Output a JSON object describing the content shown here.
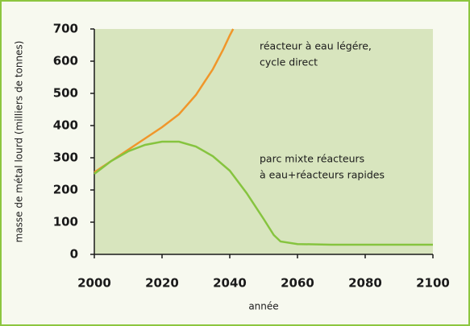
{
  "chart_data": {
    "type": "line",
    "x_label": "année",
    "y_label": "masse de métal lourd (milliers de tonnes)",
    "xlim": [
      2000,
      2100
    ],
    "ylim": [
      0,
      700
    ],
    "xticks": [
      2000,
      2020,
      2040,
      2060,
      2080,
      2100
    ],
    "yticks": [
      0,
      100,
      200,
      300,
      400,
      500,
      600,
      700
    ],
    "series": [
      {
        "color": "#f0962a",
        "x": [
          2000,
          2005,
          2010,
          2015,
          2020,
          2025,
          2030,
          2035,
          2038,
          2040,
          2041
        ],
        "values": [
          255,
          290,
          325,
          360,
          395,
          435,
          495,
          575,
          635,
          680,
          700
        ]
      },
      {
        "color": "#86c43f",
        "x": [
          2000,
          2005,
          2010,
          2015,
          2020,
          2025,
          2030,
          2035,
          2040,
          2045,
          2050,
          2053,
          2055,
          2060,
          2070,
          2080,
          2090,
          2100
        ],
        "values": [
          250,
          290,
          320,
          340,
          350,
          350,
          335,
          305,
          260,
          190,
          110,
          60,
          40,
          32,
          30,
          30,
          30,
          30
        ]
      }
    ],
    "annotations": [
      {
        "lines": [
          "réacteur à eau légére,",
          "cycle direct"
        ]
      },
      {
        "lines": [
          "parc mixte réacteurs",
          "à eau+réacteurs rapides"
        ]
      }
    ]
  }
}
